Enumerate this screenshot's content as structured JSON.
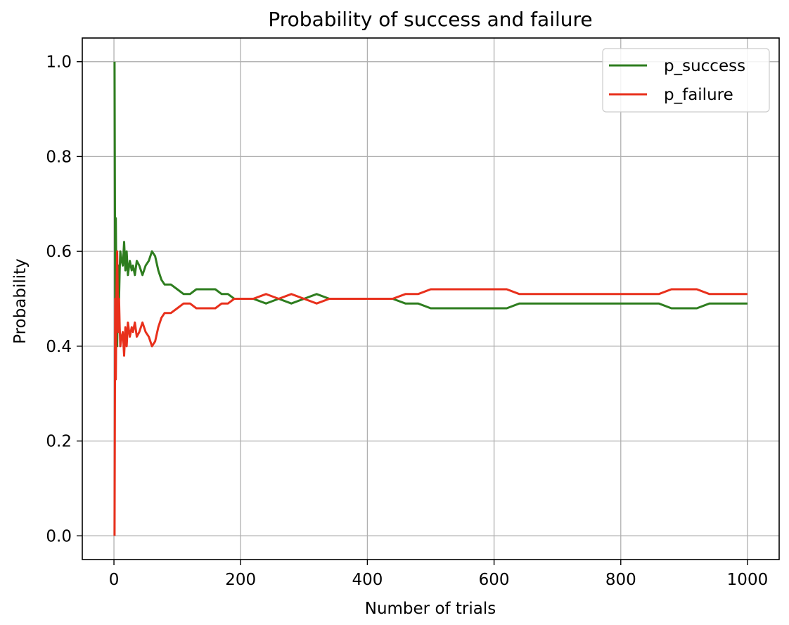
{
  "chart_data": {
    "type": "line",
    "title": "Probability of success and failure",
    "xlabel": "Number of trials",
    "ylabel": "Probability",
    "xlim": [
      -50,
      1050
    ],
    "ylim": [
      -0.05,
      1.05
    ],
    "x_ticks": [
      0,
      200,
      400,
      600,
      800,
      1000
    ],
    "y_ticks": [
      0.0,
      0.2,
      0.4,
      0.6,
      0.8,
      1.0
    ],
    "y_tick_labels": [
      "0.0",
      "0.2",
      "0.4",
      "0.6",
      "0.8",
      "1.0"
    ],
    "grid": true,
    "legend_position": "top-right",
    "series": [
      {
        "name": "p_success",
        "color": "#2e7d1f",
        "x": [
          1,
          2,
          3,
          4,
          5,
          6,
          7,
          8,
          9,
          10,
          12,
          14,
          16,
          18,
          20,
          22,
          25,
          28,
          30,
          33,
          36,
          40,
          45,
          50,
          55,
          60,
          65,
          70,
          75,
          80,
          90,
          100,
          110,
          120,
          130,
          140,
          150,
          160,
          170,
          180,
          190,
          200,
          220,
          240,
          260,
          280,
          300,
          320,
          340,
          360,
          380,
          400,
          420,
          440,
          460,
          480,
          500,
          520,
          540,
          560,
          580,
          600,
          620,
          640,
          660,
          680,
          700,
          720,
          740,
          760,
          780,
          800,
          820,
          840,
          860,
          880,
          900,
          920,
          940,
          960,
          980,
          1000
        ],
        "y": [
          1.0,
          0.5,
          0.67,
          0.5,
          0.4,
          0.5,
          0.57,
          0.5,
          0.56,
          0.6,
          0.58,
          0.57,
          0.62,
          0.56,
          0.6,
          0.55,
          0.58,
          0.56,
          0.57,
          0.55,
          0.58,
          0.57,
          0.55,
          0.57,
          0.58,
          0.6,
          0.59,
          0.56,
          0.54,
          0.53,
          0.53,
          0.52,
          0.51,
          0.51,
          0.52,
          0.52,
          0.52,
          0.52,
          0.51,
          0.51,
          0.5,
          0.5,
          0.5,
          0.49,
          0.5,
          0.49,
          0.5,
          0.51,
          0.5,
          0.5,
          0.5,
          0.5,
          0.5,
          0.5,
          0.49,
          0.49,
          0.48,
          0.48,
          0.48,
          0.48,
          0.48,
          0.48,
          0.48,
          0.49,
          0.49,
          0.49,
          0.49,
          0.49,
          0.49,
          0.49,
          0.49,
          0.49,
          0.49,
          0.49,
          0.49,
          0.48,
          0.48,
          0.48,
          0.49,
          0.49,
          0.49,
          0.49
        ]
      },
      {
        "name": "p_failure",
        "color": "#e8301c",
        "x": [
          1,
          2,
          3,
          4,
          5,
          6,
          7,
          8,
          9,
          10,
          12,
          14,
          16,
          18,
          20,
          22,
          25,
          28,
          30,
          33,
          36,
          40,
          45,
          50,
          55,
          60,
          65,
          70,
          75,
          80,
          90,
          100,
          110,
          120,
          130,
          140,
          150,
          160,
          170,
          180,
          190,
          200,
          220,
          240,
          260,
          280,
          300,
          320,
          340,
          360,
          380,
          400,
          420,
          440,
          460,
          480,
          500,
          520,
          540,
          560,
          580,
          600,
          620,
          640,
          660,
          680,
          700,
          720,
          740,
          760,
          780,
          800,
          820,
          840,
          860,
          880,
          900,
          920,
          940,
          960,
          980,
          1000
        ],
        "y": [
          0.0,
          0.5,
          0.33,
          0.5,
          0.6,
          0.5,
          0.43,
          0.5,
          0.44,
          0.4,
          0.42,
          0.43,
          0.38,
          0.44,
          0.4,
          0.45,
          0.42,
          0.44,
          0.43,
          0.45,
          0.42,
          0.43,
          0.45,
          0.43,
          0.42,
          0.4,
          0.41,
          0.44,
          0.46,
          0.47,
          0.47,
          0.48,
          0.49,
          0.49,
          0.48,
          0.48,
          0.48,
          0.48,
          0.49,
          0.49,
          0.5,
          0.5,
          0.5,
          0.51,
          0.5,
          0.51,
          0.5,
          0.49,
          0.5,
          0.5,
          0.5,
          0.5,
          0.5,
          0.5,
          0.51,
          0.51,
          0.52,
          0.52,
          0.52,
          0.52,
          0.52,
          0.52,
          0.52,
          0.51,
          0.51,
          0.51,
          0.51,
          0.51,
          0.51,
          0.51,
          0.51,
          0.51,
          0.51,
          0.51,
          0.51,
          0.52,
          0.52,
          0.52,
          0.51,
          0.51,
          0.51,
          0.51
        ]
      }
    ]
  }
}
